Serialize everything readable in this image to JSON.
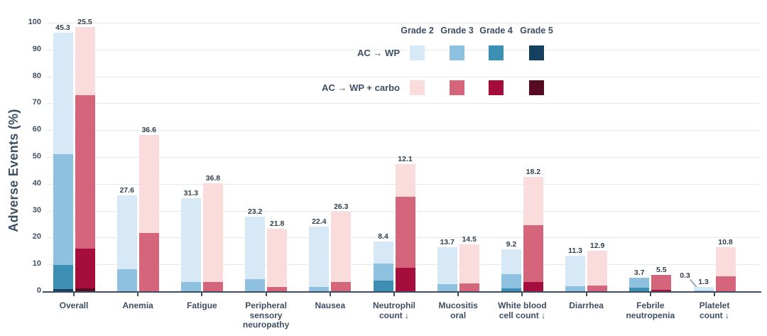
{
  "chart_data": {
    "type": "bar",
    "subtype": "grouped-stacked-vertical",
    "title": "",
    "ylabel": "Adverse Events (%)",
    "xlabel": "",
    "ylim": [
      0,
      100
    ],
    "ytick_step": 10,
    "grid": "horizontal",
    "legend_position": "top-center",
    "grades": [
      "Grade 2",
      "Grade 3",
      "Grade 4",
      "Grade 5"
    ],
    "arms": [
      {
        "key": "wp",
        "label": "AC → WP"
      },
      {
        "key": "carbo",
        "label": "AC → WP + carbo"
      }
    ],
    "arm_colors": {
      "wp": {
        "g2": "#d7e9f7",
        "g3": "#8ec1e0",
        "g4": "#3e8fb4",
        "g5": "#16405f"
      },
      "carbo": {
        "g2": "#fbdcdc",
        "g3": "#d5657a",
        "g4": "#a50d3c",
        "g5": "#560b22"
      }
    },
    "categories": [
      {
        "label": "Overall",
        "wp": [
          {
            "grade": 5,
            "value": 0.8,
            "white": true
          },
          {
            "grade": 4,
            "value": 8.9
          },
          {
            "grade": 3,
            "value": 41.3
          },
          {
            "grade": 2,
            "value": 45.3
          }
        ],
        "carbo": [
          {
            "grade": 5,
            "value": 1.1,
            "white": true
          },
          {
            "grade": 4,
            "value": 14.7
          },
          {
            "grade": 3,
            "value": 57.1
          },
          {
            "grade": 2,
            "value": 25.5
          }
        ]
      },
      {
        "label": "Anemia",
        "wp": [
          {
            "grade": 3,
            "value": 8.2
          },
          {
            "grade": 2,
            "value": 27.6
          }
        ],
        "carbo": [
          {
            "grade": 3,
            "value": 21.6
          },
          {
            "grade": 2,
            "value": 36.6
          }
        ]
      },
      {
        "label": "Fatigue",
        "wp": [
          {
            "grade": 3,
            "value": 3.4
          },
          {
            "grade": 2,
            "value": 31.3
          }
        ],
        "carbo": [
          {
            "grade": 3,
            "value": 3.4
          },
          {
            "grade": 2,
            "value": 36.8
          }
        ]
      },
      {
        "label": "Peripheral\nsensory\nneuropathy",
        "wp": [
          {
            "grade": 3,
            "value": 4.5
          },
          {
            "grade": 2,
            "value": 23.2
          }
        ],
        "carbo": [
          {
            "grade": 3,
            "value": 1.6
          },
          {
            "grade": 2,
            "value": 21.8
          }
        ]
      },
      {
        "label": "Nausea",
        "wp": [
          {
            "grade": 3,
            "value": 1.6
          },
          {
            "grade": 2,
            "value": 22.4
          }
        ],
        "carbo": [
          {
            "grade": 3,
            "value": 3.4
          },
          {
            "grade": 2,
            "value": 26.3
          }
        ]
      },
      {
        "label": "Neutrophil\ncount ↓",
        "wp": [
          {
            "grade": 4,
            "value": 3.9,
            "white": true
          },
          {
            "grade": 3,
            "value": 6.3
          },
          {
            "grade": 2,
            "value": 8.4
          }
        ],
        "carbo": [
          {
            "grade": 4,
            "value": 8.7
          },
          {
            "grade": 3,
            "value": 26.6
          },
          {
            "grade": 2,
            "value": 12.1
          }
        ]
      },
      {
        "label": "Mucositis\noral",
        "wp": [
          {
            "grade": 3,
            "value": 2.6
          },
          {
            "grade": 2,
            "value": 13.7
          }
        ],
        "carbo": [
          {
            "grade": 3,
            "value": 2.9
          },
          {
            "grade": 2,
            "value": 14.5
          }
        ]
      },
      {
        "label": "White blood\ncell count ↓",
        "wp": [
          {
            "grade": 4,
            "value": 1.1,
            "white": true
          },
          {
            "grade": 3,
            "value": 5.3
          },
          {
            "grade": 2,
            "value": 9.2
          }
        ],
        "carbo": [
          {
            "grade": 4,
            "value": 3.4
          },
          {
            "grade": 3,
            "value": 21.1
          },
          {
            "grade": 2,
            "value": 18.2
          }
        ]
      },
      {
        "label": "Diarrhea",
        "wp": [
          {
            "grade": 3,
            "value": 1.8
          },
          {
            "grade": 2,
            "value": 11.3
          }
        ],
        "carbo": [
          {
            "grade": 3,
            "value": 2.1
          },
          {
            "grade": 2,
            "value": 12.9
          }
        ]
      },
      {
        "label": "Febrile\nneutropenia",
        "wp": [
          {
            "grade": 4,
            "value": 1.3,
            "white": true
          },
          {
            "grade": 3,
            "value": 3.7
          }
        ],
        "carbo": [
          {
            "grade": 4,
            "value": 0.5,
            "white": true
          },
          {
            "grade": 3,
            "value": 5.5
          }
        ]
      },
      {
        "label": "Platelet\ncount ↓",
        "wp": [
          {
            "grade": 3,
            "value": 0.3,
            "callout": true
          },
          {
            "grade": 2,
            "value": 1.3
          }
        ],
        "carbo": [
          {
            "grade": 3,
            "value": 5.5
          },
          {
            "grade": 2,
            "value": 10.8
          }
        ]
      }
    ]
  }
}
